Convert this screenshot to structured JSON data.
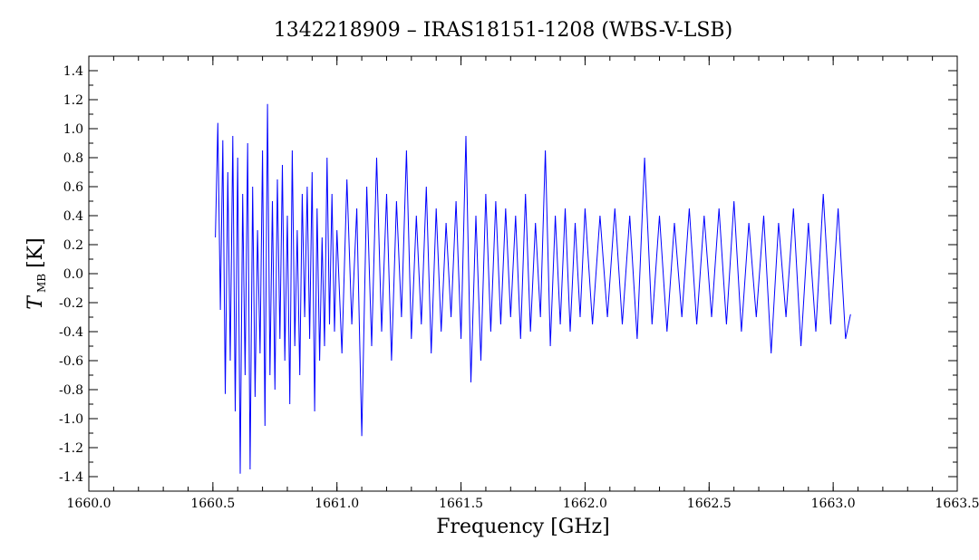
{
  "chart_data": {
    "type": "line",
    "title": "1342218909 – IRAS18151-1208 (WBS-V-LSB)",
    "xlabel": "Frequency [GHz]",
    "ylabel": {
      "main": "T",
      "sub": "MB",
      "unit": "[K]"
    },
    "xlim": [
      1660.0,
      1663.5
    ],
    "ylim": [
      -1.5,
      1.5
    ],
    "xticks": [
      1660.0,
      1660.5,
      1661.0,
      1661.5,
      1662.0,
      1662.5,
      1663.0,
      1663.5
    ],
    "xtick_labels": [
      "1660.0",
      "1660.5",
      "1661.0",
      "1661.5",
      "1662.0",
      "1662.5",
      "1663.0",
      "1663.5"
    ],
    "yticks": [
      1.4,
      1.2,
      1.0,
      0.8,
      0.6,
      0.4,
      0.2,
      0.0,
      -0.2,
      -0.4,
      -0.6,
      -0.8,
      -1.0,
      -1.2,
      -1.4
    ],
    "ytick_labels": [
      "1.4",
      "1.2",
      "1.0",
      "0.8",
      "0.6",
      "0.4",
      "0.2",
      "0.0",
      "-0.2",
      "-0.4",
      "-0.6",
      "-0.8",
      "-1.0",
      "-1.2",
      "-1.4"
    ],
    "grid": false,
    "series": [
      {
        "color": "#0000ff",
        "x": [
          1660.51,
          1660.52,
          1660.53,
          1660.54,
          1660.55,
          1660.56,
          1660.57,
          1660.58,
          1660.59,
          1660.6,
          1660.61,
          1660.62,
          1660.63,
          1660.64,
          1660.65,
          1660.66,
          1660.67,
          1660.68,
          1660.69,
          1660.7,
          1660.71,
          1660.72,
          1660.73,
          1660.74,
          1660.75,
          1660.76,
          1660.77,
          1660.78,
          1660.79,
          1660.8,
          1660.81,
          1660.82,
          1660.83,
          1660.84,
          1660.85,
          1660.86,
          1660.87,
          1660.88,
          1660.89,
          1660.9,
          1660.91,
          1660.92,
          1660.93,
          1660.94,
          1660.95,
          1660.96,
          1660.97,
          1660.98,
          1660.99,
          1661.0,
          1661.02,
          1661.04,
          1661.06,
          1661.08,
          1661.1,
          1661.12,
          1661.14,
          1661.16,
          1661.18,
          1661.2,
          1661.22,
          1661.24,
          1661.26,
          1661.28,
          1661.3,
          1661.32,
          1661.34,
          1661.36,
          1661.38,
          1661.4,
          1661.42,
          1661.44,
          1661.46,
          1661.48,
          1661.5,
          1661.52,
          1661.54,
          1661.56,
          1661.58,
          1661.6,
          1661.62,
          1661.64,
          1661.66,
          1661.68,
          1661.7,
          1661.72,
          1661.74,
          1661.76,
          1661.78,
          1661.8,
          1661.82,
          1661.84,
          1661.86,
          1661.88,
          1661.9,
          1661.92,
          1661.94,
          1661.96,
          1661.98,
          1662.0,
          1662.03,
          1662.06,
          1662.09,
          1662.12,
          1662.15,
          1662.18,
          1662.21,
          1662.24,
          1662.27,
          1662.3,
          1662.33,
          1662.36,
          1662.39,
          1662.42,
          1662.45,
          1662.48,
          1662.51,
          1662.54,
          1662.57,
          1662.6,
          1662.63,
          1662.66,
          1662.69,
          1662.72,
          1662.75,
          1662.78,
          1662.81,
          1662.84,
          1662.87,
          1662.9,
          1662.93,
          1662.96,
          1662.99,
          1663.02,
          1663.05,
          1663.07
        ],
        "y": [
          0.25,
          1.04,
          -0.25,
          0.92,
          -0.83,
          0.7,
          -0.6,
          0.95,
          -0.95,
          0.8,
          -1.38,
          0.55,
          -0.7,
          0.9,
          -1.35,
          0.6,
          -0.85,
          0.3,
          -0.55,
          0.85,
          -1.05,
          1.17,
          -0.7,
          0.5,
          -0.8,
          0.65,
          -0.45,
          0.75,
          -0.6,
          0.4,
          -0.9,
          0.85,
          -0.5,
          0.3,
          -0.7,
          0.55,
          -0.3,
          0.6,
          -0.45,
          0.7,
          -0.95,
          0.45,
          -0.6,
          0.25,
          -0.5,
          0.8,
          -0.35,
          0.55,
          -0.4,
          0.3,
          -0.55,
          0.65,
          -0.35,
          0.45,
          -1.12,
          0.6,
          -0.5,
          0.8,
          -0.4,
          0.55,
          -0.6,
          0.5,
          -0.3,
          0.85,
          -0.45,
          0.4,
          -0.35,
          0.6,
          -0.55,
          0.45,
          -0.4,
          0.35,
          -0.3,
          0.5,
          -0.45,
          0.95,
          -0.75,
          0.4,
          -0.6,
          0.55,
          -0.4,
          0.5,
          -0.35,
          0.45,
          -0.3,
          0.4,
          -0.45,
          0.55,
          -0.4,
          0.35,
          -0.3,
          0.85,
          -0.5,
          0.4,
          -0.35,
          0.45,
          -0.4,
          0.35,
          -0.3,
          0.45,
          -0.35,
          0.4,
          -0.3,
          0.45,
          -0.35,
          0.4,
          -0.45,
          0.8,
          -0.35,
          0.4,
          -0.4,
          0.35,
          -0.3,
          0.45,
          -0.35,
          0.4,
          -0.3,
          0.45,
          -0.35,
          0.5,
          -0.4,
          0.35,
          -0.3,
          0.4,
          -0.55,
          0.35,
          -0.3,
          0.45,
          -0.5,
          0.35,
          -0.4,
          0.55,
          -0.35,
          0.45,
          -0.45,
          -0.28
        ]
      }
    ]
  }
}
